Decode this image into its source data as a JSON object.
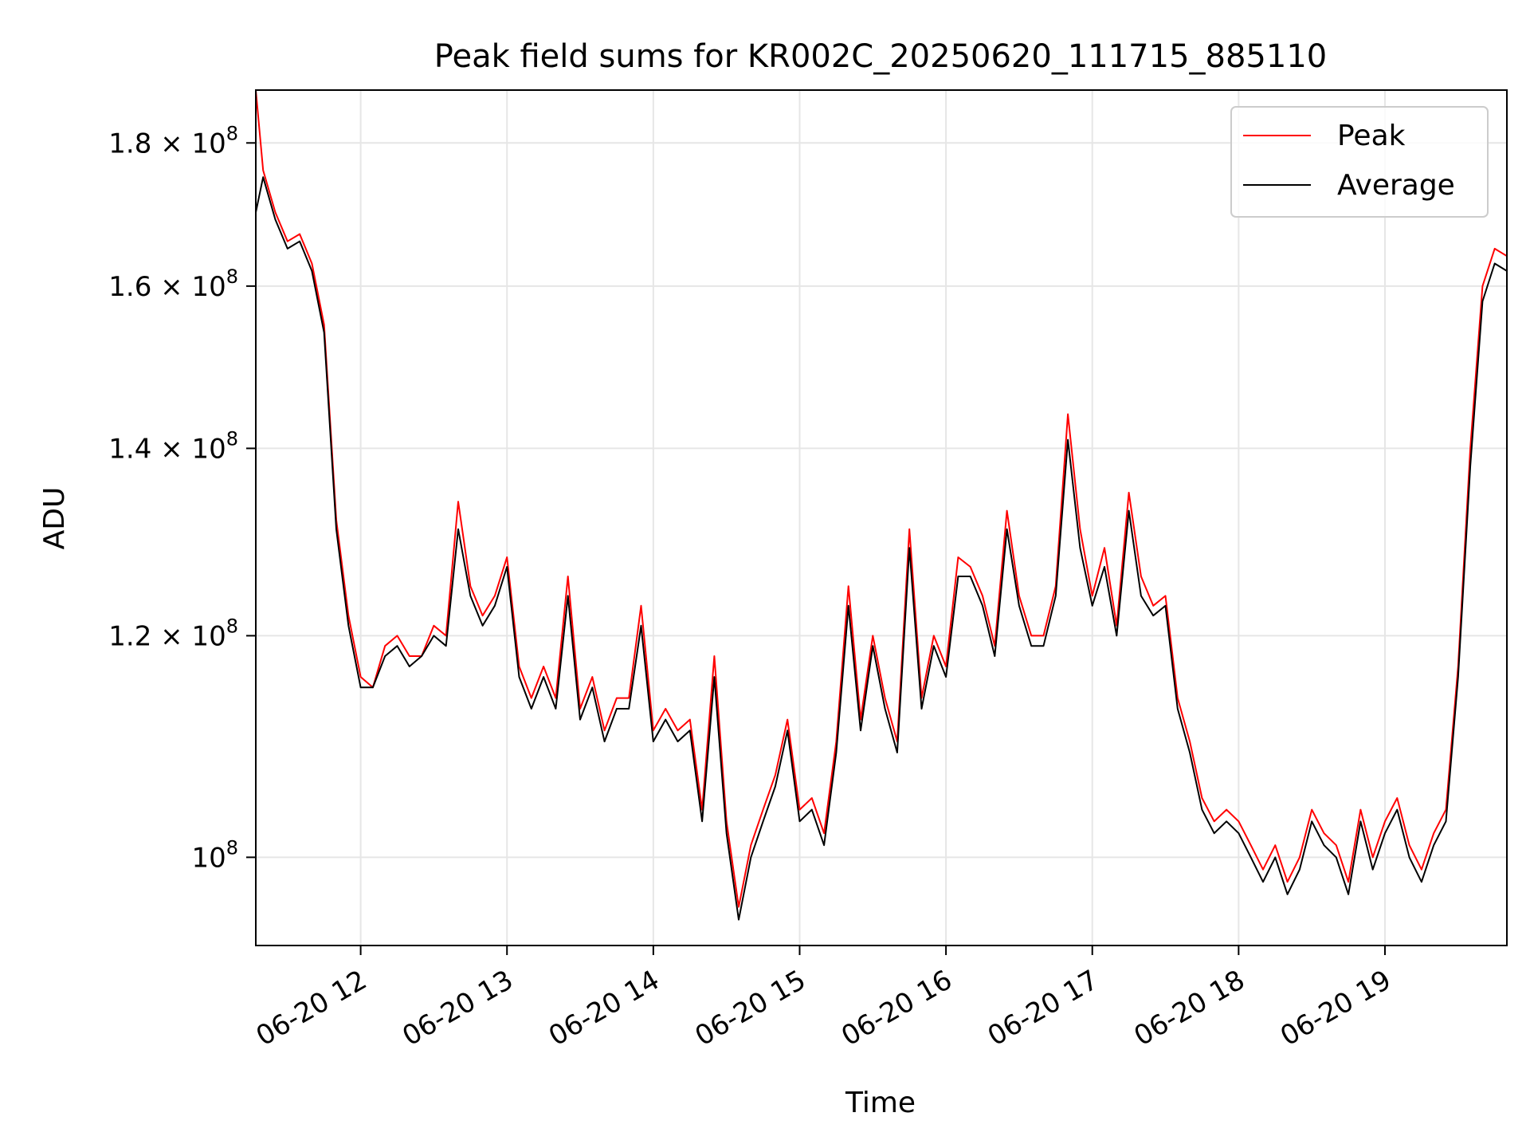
{
  "chart_data": {
    "type": "line",
    "title": "Peak field sums for KR002C_20250620_111715_885110",
    "xlabel": "Time",
    "ylabel": "ADU",
    "xlim": [
      "06-20 11:17",
      "06-20 19:50"
    ],
    "ylim": [
      93000000,
      188000000
    ],
    "yscale": "log",
    "grid": true,
    "legend_position": "top-right",
    "x_ticks": [
      "06-20 12",
      "06-20 13",
      "06-20 14",
      "06-20 15",
      "06-20 16",
      "06-20 17",
      "06-20 18",
      "06-20 19"
    ],
    "y_ticks": [
      {
        "value": 100000000,
        "mantissa": "",
        "exponent": "8"
      },
      {
        "value": 120000000,
        "mantissa": "1.2",
        "exponent": "8"
      },
      {
        "value": 140000000,
        "mantissa": "1.4",
        "exponent": "8"
      },
      {
        "value": 160000000,
        "mantissa": "1.6",
        "exponent": "8"
      },
      {
        "value": 180000000,
        "mantissa": "1.8",
        "exponent": "8"
      }
    ],
    "y_tick_base": "10",
    "y_tick_times": "×",
    "series": [
      {
        "name": "Peak",
        "color": "#ff0000",
        "x": [
          "06-20 11:17",
          "06-20 11:20",
          "06-20 11:25",
          "06-20 11:30",
          "06-20 11:35",
          "06-20 11:40",
          "06-20 11:45",
          "06-20 11:50",
          "06-20 11:55",
          "06-20 12:00",
          "06-20 12:05",
          "06-20 12:10",
          "06-20 12:15",
          "06-20 12:20",
          "06-20 12:25",
          "06-20 12:30",
          "06-20 12:35",
          "06-20 12:40",
          "06-20 12:45",
          "06-20 12:50",
          "06-20 12:55",
          "06-20 13:00",
          "06-20 13:05",
          "06-20 13:10",
          "06-20 13:15",
          "06-20 13:20",
          "06-20 13:25",
          "06-20 13:30",
          "06-20 13:35",
          "06-20 13:40",
          "06-20 13:45",
          "06-20 13:50",
          "06-20 13:55",
          "06-20 14:00",
          "06-20 14:05",
          "06-20 14:10",
          "06-20 14:15",
          "06-20 14:20",
          "06-20 14:25",
          "06-20 14:30",
          "06-20 14:35",
          "06-20 14:40",
          "06-20 14:45",
          "06-20 14:50",
          "06-20 14:55",
          "06-20 15:00",
          "06-20 15:05",
          "06-20 15:10",
          "06-20 15:15",
          "06-20 15:20",
          "06-20 15:25",
          "06-20 15:30",
          "06-20 15:35",
          "06-20 15:40",
          "06-20 15:45",
          "06-20 15:50",
          "06-20 15:55",
          "06-20 16:00",
          "06-20 16:05",
          "06-20 16:10",
          "06-20 16:15",
          "06-20 16:20",
          "06-20 16:25",
          "06-20 16:30",
          "06-20 16:35",
          "06-20 16:40",
          "06-20 16:45",
          "06-20 16:50",
          "06-20 16:55",
          "06-20 17:00",
          "06-20 17:05",
          "06-20 17:10",
          "06-20 17:15",
          "06-20 17:20",
          "06-20 17:25",
          "06-20 17:30",
          "06-20 17:35",
          "06-20 17:40",
          "06-20 17:45",
          "06-20 17:50",
          "06-20 17:55",
          "06-20 18:00",
          "06-20 18:05",
          "06-20 18:10",
          "06-20 18:15",
          "06-20 18:20",
          "06-20 18:25",
          "06-20 18:30",
          "06-20 18:35",
          "06-20 18:40",
          "06-20 18:45",
          "06-20 18:50",
          "06-20 18:55",
          "06-20 19:00",
          "06-20 19:05",
          "06-20 19:10",
          "06-20 19:15",
          "06-20 19:20",
          "06-20 19:25",
          "06-20 19:30",
          "06-20 19:35",
          "06-20 19:40",
          "06-20 19:45",
          "06-20 19:50"
        ],
        "values": [
          188000000,
          176000000,
          170000000,
          166000000,
          167000000,
          163000000,
          155000000,
          132000000,
          122000000,
          116000000,
          115000000,
          119000000,
          120000000,
          118000000,
          118000000,
          121000000,
          120000000,
          134000000,
          125000000,
          122000000,
          124000000,
          128000000,
          117000000,
          114000000,
          117000000,
          114000000,
          126000000,
          113000000,
          116000000,
          111000000,
          114000000,
          114000000,
          123000000,
          111000000,
          113000000,
          111000000,
          112000000,
          104000000,
          118000000,
          103000000,
          96000000,
          101000000,
          104000000,
          107000000,
          112000000,
          104000000,
          105000000,
          102000000,
          110000000,
          125000000,
          112000000,
          120000000,
          114000000,
          110000000,
          131000000,
          114000000,
          120000000,
          117000000,
          128000000,
          127000000,
          124000000,
          119000000,
          133000000,
          124000000,
          120000000,
          120000000,
          125000000,
          144000000,
          131000000,
          124000000,
          129000000,
          121000000,
          135000000,
          126000000,
          123000000,
          124000000,
          114000000,
          110000000,
          105000000,
          103000000,
          104000000,
          103000000,
          101000000,
          99000000,
          101000000,
          98000000,
          100000000,
          104000000,
          102000000,
          101000000,
          98000000,
          104000000,
          100000000,
          103000000,
          105000000,
          101000000,
          99000000,
          102000000,
          104000000,
          117000000,
          140000000,
          160000000,
          165000000,
          164000000
        ]
      },
      {
        "name": "Average",
        "color": "#000000",
        "x": [
          "06-20 11:17",
          "06-20 11:20",
          "06-20 11:25",
          "06-20 11:30",
          "06-20 11:35",
          "06-20 11:40",
          "06-20 11:45",
          "06-20 11:50",
          "06-20 11:55",
          "06-20 12:00",
          "06-20 12:05",
          "06-20 12:10",
          "06-20 12:15",
          "06-20 12:20",
          "06-20 12:25",
          "06-20 12:30",
          "06-20 12:35",
          "06-20 12:40",
          "06-20 12:45",
          "06-20 12:50",
          "06-20 12:55",
          "06-20 13:00",
          "06-20 13:05",
          "06-20 13:10",
          "06-20 13:15",
          "06-20 13:20",
          "06-20 13:25",
          "06-20 13:30",
          "06-20 13:35",
          "06-20 13:40",
          "06-20 13:45",
          "06-20 13:50",
          "06-20 13:55",
          "06-20 14:00",
          "06-20 14:05",
          "06-20 14:10",
          "06-20 14:15",
          "06-20 14:20",
          "06-20 14:25",
          "06-20 14:30",
          "06-20 14:35",
          "06-20 14:40",
          "06-20 14:45",
          "06-20 14:50",
          "06-20 14:55",
          "06-20 15:00",
          "06-20 15:05",
          "06-20 15:10",
          "06-20 15:15",
          "06-20 15:20",
          "06-20 15:25",
          "06-20 15:30",
          "06-20 15:35",
          "06-20 15:40",
          "06-20 15:45",
          "06-20 15:50",
          "06-20 15:55",
          "06-20 16:00",
          "06-20 16:05",
          "06-20 16:10",
          "06-20 16:15",
          "06-20 16:20",
          "06-20 16:25",
          "06-20 16:30",
          "06-20 16:35",
          "06-20 16:40",
          "06-20 16:45",
          "06-20 16:50",
          "06-20 16:55",
          "06-20 17:00",
          "06-20 17:05",
          "06-20 17:10",
          "06-20 17:15",
          "06-20 17:20",
          "06-20 17:25",
          "06-20 17:30",
          "06-20 17:35",
          "06-20 17:40",
          "06-20 17:45",
          "06-20 17:50",
          "06-20 17:55",
          "06-20 18:00",
          "06-20 18:05",
          "06-20 18:10",
          "06-20 18:15",
          "06-20 18:20",
          "06-20 18:25",
          "06-20 18:30",
          "06-20 18:35",
          "06-20 18:40",
          "06-20 18:45",
          "06-20 18:50",
          "06-20 18:55",
          "06-20 19:00",
          "06-20 19:05",
          "06-20 19:10",
          "06-20 19:15",
          "06-20 19:20",
          "06-20 19:25",
          "06-20 19:30",
          "06-20 19:35",
          "06-20 19:40",
          "06-20 19:45",
          "06-20 19:50"
        ],
        "values": [
          170000000,
          175000000,
          169000000,
          165000000,
          166000000,
          162000000,
          154000000,
          131000000,
          121000000,
          115000000,
          115000000,
          118000000,
          119000000,
          117000000,
          118000000,
          120000000,
          119000000,
          131000000,
          124000000,
          121000000,
          123000000,
          127000000,
          116000000,
          113000000,
          116000000,
          113000000,
          124000000,
          112000000,
          115000000,
          110000000,
          113000000,
          113000000,
          121000000,
          110000000,
          112000000,
          110000000,
          111000000,
          103000000,
          116000000,
          102000000,
          95000000,
          100000000,
          103000000,
          106000000,
          111000000,
          103000000,
          104000000,
          101000000,
          109000000,
          123000000,
          111000000,
          119000000,
          113000000,
          109000000,
          129000000,
          113000000,
          119000000,
          116000000,
          126000000,
          126000000,
          123000000,
          118000000,
          131000000,
          123000000,
          119000000,
          119000000,
          124000000,
          141000000,
          129000000,
          123000000,
          127000000,
          120000000,
          133000000,
          124000000,
          122000000,
          123000000,
          113000000,
          109000000,
          104000000,
          102000000,
          103000000,
          102000000,
          100000000,
          98000000,
          100000000,
          97000000,
          99000000,
          103000000,
          101000000,
          100000000,
          97000000,
          103000000,
          99000000,
          102000000,
          104000000,
          100000000,
          98000000,
          101000000,
          103000000,
          116000000,
          138000000,
          158000000,
          163000000,
          162000000
        ]
      }
    ]
  }
}
